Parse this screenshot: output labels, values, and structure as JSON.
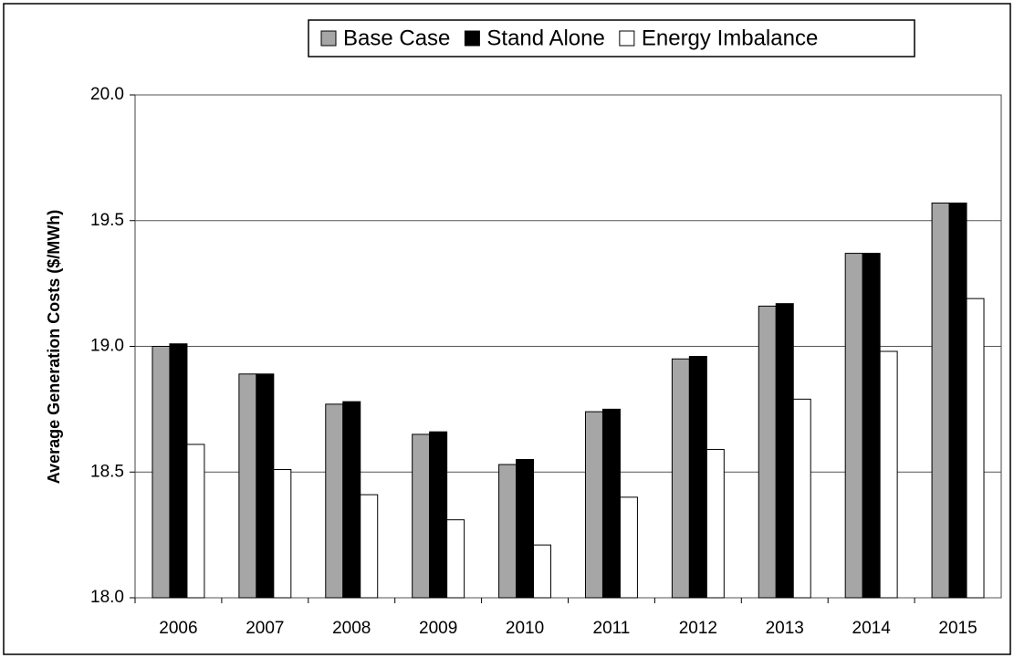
{
  "chart_data": {
    "type": "bar",
    "y_label": "Average Generation Costs ($/MWh)",
    "categories": [
      "2006",
      "2007",
      "2008",
      "2009",
      "2010",
      "2011",
      "2012",
      "2013",
      "2014",
      "2015"
    ],
    "series": [
      {
        "name": "Base Case",
        "color": "#a6a6a6",
        "values": [
          19.0,
          18.89,
          18.77,
          18.65,
          18.53,
          18.74,
          18.95,
          19.16,
          19.37,
          19.57
        ]
      },
      {
        "name": "Stand Alone",
        "color": "#000000",
        "values": [
          19.01,
          18.89,
          18.78,
          18.66,
          18.55,
          18.75,
          18.96,
          19.17,
          19.37,
          19.57
        ]
      },
      {
        "name": "Energy Imbalance",
        "color": "#ffffff",
        "values": [
          18.61,
          18.51,
          18.41,
          18.31,
          18.21,
          18.4,
          18.59,
          18.79,
          18.98,
          19.19
        ]
      }
    ],
    "ylim": [
      18,
      20
    ],
    "yticks": [
      {
        "value": 18,
        "label": "18.0"
      },
      {
        "value": 18.5,
        "label": "18.5"
      },
      {
        "value": 19,
        "label": "19.0"
      },
      {
        "value": 19.5,
        "label": "19.5"
      },
      {
        "value": 20,
        "label": "20.0"
      }
    ],
    "grid": true,
    "legend": "top"
  }
}
